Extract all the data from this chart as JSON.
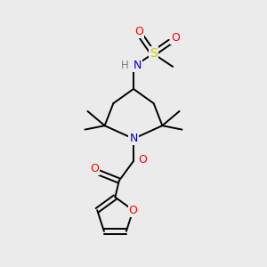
{
  "bg_color": "#ebebeb",
  "atom_colors": {
    "C": "#000000",
    "N": "#0000cc",
    "O": "#ff0000",
    "S": "#cccc00",
    "H": "#808080"
  },
  "bond_color": "#000000"
}
